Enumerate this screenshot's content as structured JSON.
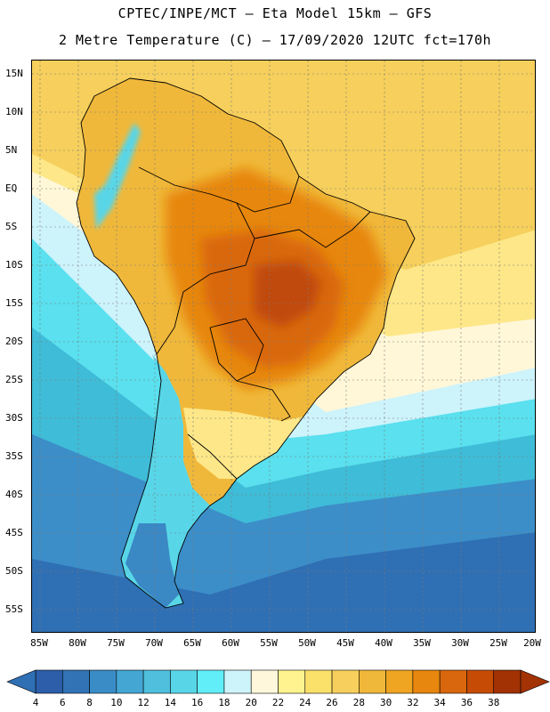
{
  "header": {
    "line1": "CPTEC/INPE/MCT –  Eta Model 15km – GFS",
    "line2": "2 Metre Temperature (C) – 17/09/2020 12UTC fct=170h"
  },
  "map": {
    "lat_labels": [
      "15N",
      "10N",
      "5N",
      "EQ",
      "5S",
      "10S",
      "15S",
      "20S",
      "25S",
      "30S",
      "35S",
      "40S",
      "45S",
      "50S",
      "55S"
    ],
    "lon_labels": [
      "85W",
      "80W",
      "75W",
      "70W",
      "65W",
      "60W",
      "55W",
      "50W",
      "45W",
      "40W",
      "35W",
      "30W",
      "25W",
      "20W"
    ],
    "ocean_colors": {
      "warm_equatorial": "#f6cf5c",
      "ocean_22": "#fff7d8",
      "ocean_20": "#cdf3fb",
      "ocean_16": "#5ae0ee",
      "ocean_12": "#3fbcd8",
      "ocean_8": "#3c8ec8",
      "ocean_6": "#2f6fb4"
    },
    "land_colors": {
      "hot_38": "#c04a08",
      "hot_34": "#d9670d",
      "hot_32": "#e7870f",
      "warm_30": "#efa422",
      "warm_28": "#f0b83a",
      "mild_24": "#fde788",
      "cool_14": "#58d6e8",
      "cold_8": "#3a88c4"
    }
  },
  "colorbar": {
    "values": [
      "4",
      "6",
      "8",
      "10",
      "12",
      "14",
      "16",
      "18",
      "20",
      "22",
      "24",
      "26",
      "28",
      "30",
      "32",
      "34",
      "36",
      "38"
    ],
    "colors": [
      "#2c5ea9",
      "#3273b5",
      "#3a8cc6",
      "#43a6d3",
      "#4fbfdd",
      "#58d6e8",
      "#62eef8",
      "#cdf3fb",
      "#fff7dc",
      "#fef38e",
      "#fbe06a",
      "#f6cf5c",
      "#f0b83a",
      "#efa422",
      "#e7870f",
      "#d9670d",
      "#c64c05",
      "#a23204"
    ],
    "low_end_color": "#2f6fb4",
    "high_end_color": "#a33204"
  }
}
